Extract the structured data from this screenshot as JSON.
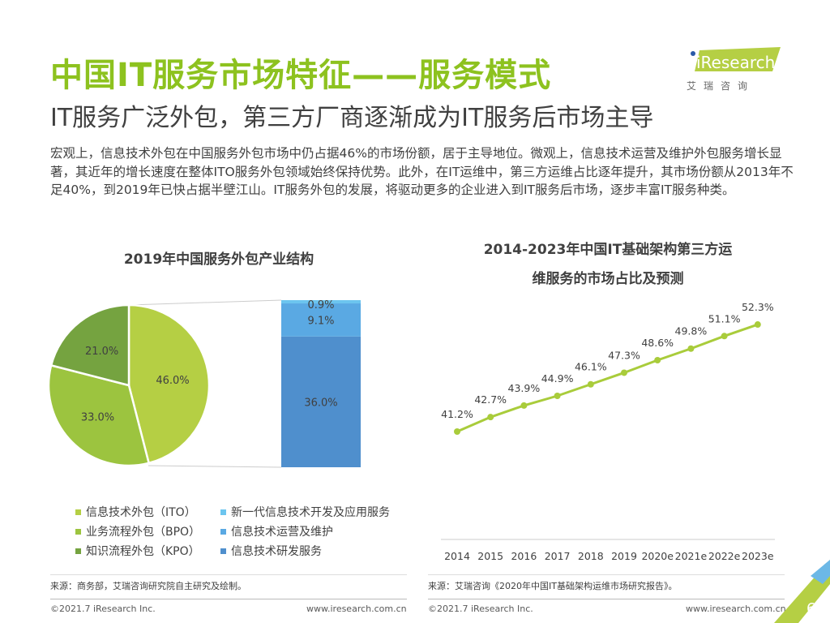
{
  "header": {
    "title": "中国IT服务市场特征——服务模式",
    "subtitle": "IT服务广泛外包，第三方厂商逐渐成为IT服务后市场主导",
    "logo_text": "iResearch",
    "logo_cn": "艾 瑞 咨 询"
  },
  "body_text": "宏观上，信息技术外包在中国服务外包市场中仍占据46%的市场份额，居于主导地位。微观上，信息技术运营及维护外包服务增长显著，其近年的增长速度在整体ITO服务外包领域始终保持优势。此外，在IT运维中，第三方运维占比逐年提升，其市场份额从2013年不足40%，到2019年已快占据半壁江山。IT服务外包的发展，将驱动更多的企业进入到IT服务后市场，逐步丰富IT服务种类。",
  "colors": {
    "accent": "#8dc21f",
    "ito": "#b5cf44",
    "bpo": "#9cc43f",
    "kpo": "#75a340",
    "new_it": "#6cc5ef",
    "ops": "#5aa9e3",
    "rd": "#4f8fcd",
    "line": "#a9cc3b"
  },
  "chart_data": [
    {
      "type": "pie",
      "title": "2019年中国服务外包产业结构",
      "slices": [
        {
          "name": "信息技术外包（ITO）",
          "value": 46.0,
          "label": "46.0%"
        },
        {
          "name": "业务流程外包（BPO）",
          "value": 33.0,
          "label": "33.0%"
        },
        {
          "name": "知识流程外包（KPO）",
          "value": 21.0,
          "label": "21.0%"
        }
      ],
      "breakdown": [
        {
          "name": "信息技术研发服务",
          "value": 36.0,
          "label": "36.0%"
        },
        {
          "name": "信息技术运营及维护",
          "value": 9.1,
          "label": "9.1%"
        },
        {
          "name": "新一代信息技术开发及应用服务",
          "value": 0.9,
          "label": "0.9%"
        }
      ],
      "legend": [
        "信息技术外包（ITO）",
        "业务流程外包（BPO）",
        "知识流程外包（KPO）",
        "新一代信息技术开发及应用服务",
        "信息技术运营及维护",
        "信息技术研发服务"
      ],
      "source": "来源：商务部，艾瑞咨询研究院自主研究及绘制。"
    },
    {
      "type": "line",
      "title_line1": "2014-2023年中国IT基础架构第三方运",
      "title_line2": "维服务的市场占比及预测",
      "x": [
        "2014",
        "2015",
        "2016",
        "2017",
        "2018",
        "2019",
        "2020e",
        "2021e",
        "2022e",
        "2023e"
      ],
      "values": [
        41.2,
        42.7,
        43.9,
        44.9,
        46.1,
        47.3,
        48.6,
        49.8,
        51.1,
        52.3
      ],
      "labels": [
        "41.2%",
        "42.7%",
        "43.9%",
        "44.9%",
        "46.1%",
        "47.3%",
        "48.6%",
        "49.8%",
        "51.1%",
        "52.3%"
      ],
      "source": "来源：艾瑞咨询《2020年中国IT基础架构运维市场研究报告》。"
    }
  ],
  "footer": {
    "copyright": "©2021.7 iResearch Inc.",
    "url": "www.iresearch.com.cn",
    "page": "6"
  }
}
